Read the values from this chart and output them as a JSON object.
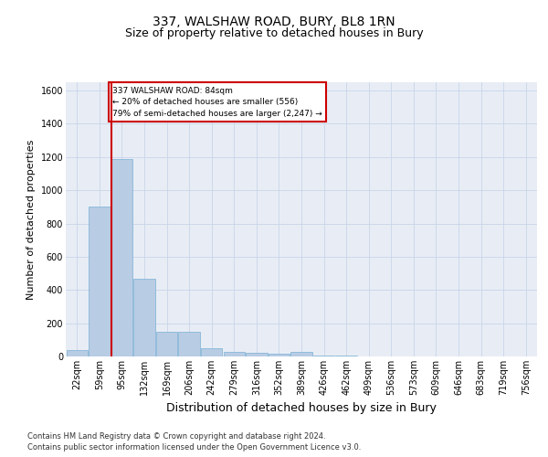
{
  "title": "337, WALSHAW ROAD, BURY, BL8 1RN",
  "subtitle": "Size of property relative to detached houses in Bury",
  "xlabel": "Distribution of detached houses by size in Bury",
  "ylabel": "Number of detached properties",
  "footnote1": "Contains HM Land Registry data © Crown copyright and database right 2024.",
  "footnote2": "Contains public sector information licensed under the Open Government Licence v3.0.",
  "categories": [
    "22sqm",
    "59sqm",
    "95sqm",
    "132sqm",
    "169sqm",
    "206sqm",
    "242sqm",
    "279sqm",
    "316sqm",
    "352sqm",
    "389sqm",
    "426sqm",
    "462sqm",
    "499sqm",
    "536sqm",
    "573sqm",
    "609sqm",
    "646sqm",
    "683sqm",
    "719sqm",
    "756sqm"
  ],
  "bar_values": [
    40,
    900,
    1190,
    470,
    150,
    150,
    50,
    25,
    20,
    15,
    25,
    5,
    5,
    0,
    0,
    0,
    0,
    0,
    0,
    0,
    0
  ],
  "bar_color": "#b8cce4",
  "bar_edge_color": "#7ab0d4",
  "annotation_text": "337 WALSHAW ROAD: 84sqm\n← 20% of detached houses are smaller (556)\n79% of semi-detached houses are larger (2,247) →",
  "annotation_box_color": "#ffffff",
  "annotation_box_edge": "#cc0000",
  "red_line_color": "#cc0000",
  "ylim": [
    0,
    1650
  ],
  "yticks": [
    0,
    200,
    400,
    600,
    800,
    1000,
    1200,
    1400,
    1600
  ],
  "grid_color": "#c8d4e8",
  "background_color": "#e8edf5",
  "title_fontsize": 10,
  "subtitle_fontsize": 9,
  "axis_label_fontsize": 8,
  "tick_fontsize": 7,
  "footnote_fontsize": 6
}
